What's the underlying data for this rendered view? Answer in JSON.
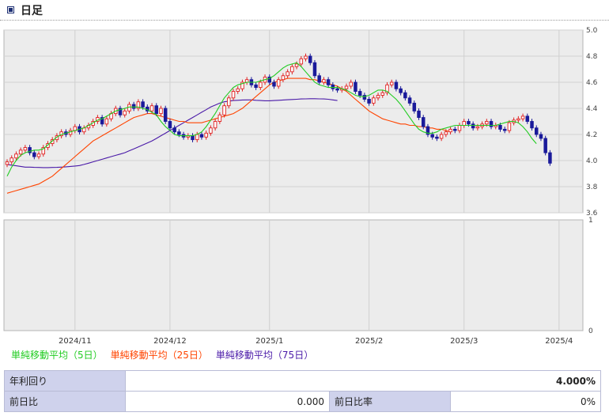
{
  "header": {
    "title": "日足"
  },
  "chart_data": {
    "type": "candlestick",
    "ylim": [
      3.6,
      5.0
    ],
    "yticks": [
      "5.0",
      "4.8",
      "4.6",
      "4.4",
      "4.2",
      "4.0",
      "3.8",
      "3.6"
    ],
    "ylim2": [
      0,
      1
    ],
    "yticks2": [
      "1",
      "0"
    ],
    "xticks": [
      {
        "label": "2024/11",
        "index": 15
      },
      {
        "label": "2024/12",
        "index": 36
      },
      {
        "label": "2025/1",
        "index": 58
      },
      {
        "label": "2025/2",
        "index": 80
      },
      {
        "label": "2025/3",
        "index": 101
      },
      {
        "label": "2025/4",
        "index": 122
      }
    ],
    "close": [
      3.99,
      4.02,
      4.05,
      4.08,
      4.1,
      4.06,
      4.03,
      4.05,
      4.1,
      4.13,
      4.16,
      4.19,
      4.22,
      4.2,
      4.23,
      4.26,
      4.22,
      4.25,
      4.27,
      4.3,
      4.33,
      4.28,
      4.32,
      4.36,
      4.4,
      4.35,
      4.38,
      4.43,
      4.4,
      4.45,
      4.41,
      4.38,
      4.42,
      4.36,
      4.4,
      4.3,
      4.25,
      4.22,
      4.2,
      4.18,
      4.19,
      4.16,
      4.2,
      4.18,
      4.21,
      4.25,
      4.3,
      4.35,
      4.42,
      4.48,
      4.53,
      4.55,
      4.6,
      4.62,
      4.58,
      4.56,
      4.6,
      4.64,
      4.6,
      4.57,
      4.62,
      4.65,
      4.68,
      4.72,
      4.74,
      4.78,
      4.8,
      4.75,
      4.65,
      4.6,
      4.62,
      4.58,
      4.55,
      4.54,
      4.55,
      4.57,
      4.6,
      4.53,
      4.5,
      4.47,
      4.44,
      4.48,
      4.5,
      4.52,
      4.58,
      4.6,
      4.55,
      4.52,
      4.48,
      4.44,
      4.38,
      4.33,
      4.26,
      4.2,
      4.18,
      4.17,
      4.2,
      4.22,
      4.24,
      4.23,
      4.27,
      4.3,
      4.28,
      4.25,
      4.26,
      4.28,
      4.3,
      4.26,
      4.27,
      4.24,
      4.23,
      4.29,
      4.31,
      4.32,
      4.34,
      4.3,
      4.25,
      4.2,
      4.17,
      4.06,
      3.98
    ],
    "open": [
      3.97,
      3.99,
      4.02,
      4.05,
      4.08,
      4.1,
      4.06,
      4.03,
      4.05,
      4.1,
      4.13,
      4.16,
      4.19,
      4.22,
      4.2,
      4.23,
      4.26,
      4.22,
      4.25,
      4.27,
      4.3,
      4.33,
      4.28,
      4.32,
      4.36,
      4.4,
      4.35,
      4.38,
      4.43,
      4.4,
      4.45,
      4.41,
      4.38,
      4.42,
      4.36,
      4.4,
      4.3,
      4.25,
      4.22,
      4.2,
      4.18,
      4.19,
      4.16,
      4.2,
      4.18,
      4.21,
      4.25,
      4.3,
      4.35,
      4.42,
      4.48,
      4.53,
      4.55,
      4.6,
      4.62,
      4.58,
      4.56,
      4.6,
      4.64,
      4.6,
      4.57,
      4.62,
      4.65,
      4.68,
      4.72,
      4.74,
      4.78,
      4.8,
      4.75,
      4.65,
      4.6,
      4.62,
      4.58,
      4.55,
      4.54,
      4.55,
      4.57,
      4.6,
      4.53,
      4.5,
      4.47,
      4.44,
      4.48,
      4.5,
      4.52,
      4.58,
      4.6,
      4.55,
      4.52,
      4.48,
      4.44,
      4.38,
      4.33,
      4.26,
      4.2,
      4.18,
      4.17,
      4.2,
      4.22,
      4.24,
      4.23,
      4.27,
      4.3,
      4.28,
      4.25,
      4.26,
      4.28,
      4.3,
      4.26,
      4.27,
      4.24,
      4.23,
      4.29,
      4.31,
      4.32,
      4.34,
      4.3,
      4.25,
      4.2,
      4.17,
      4.06
    ],
    "ma5": [
      3.88,
      3.95,
      4.0,
      4.04,
      4.06,
      4.07,
      4.08,
      4.08,
      4.09,
      4.12,
      4.15,
      4.18,
      4.2,
      4.21,
      4.22,
      4.23,
      4.24,
      4.25,
      4.27,
      4.29,
      4.31,
      4.32,
      4.34,
      4.36,
      4.38,
      4.39,
      4.4,
      4.41,
      4.41,
      4.41,
      4.4,
      4.39,
      4.37,
      4.35,
      4.3,
      4.26,
      4.23,
      4.2,
      4.19,
      4.19,
      4.19,
      4.19,
      4.2,
      4.22,
      4.26,
      4.31,
      4.36,
      4.42,
      4.48,
      4.52,
      4.56,
      4.58,
      4.59,
      4.6,
      4.6,
      4.6,
      4.61,
      4.62,
      4.63,
      4.65,
      4.68,
      4.71,
      4.73,
      4.74,
      4.75,
      4.72,
      4.68,
      4.64,
      4.6,
      4.58,
      4.57,
      4.56,
      4.56,
      4.56,
      4.55,
      4.54,
      4.52,
      4.5,
      4.49,
      4.49,
      4.5,
      4.52,
      4.54,
      4.54,
      4.53,
      4.5,
      4.47,
      4.43,
      4.38,
      4.33,
      4.28,
      4.24,
      4.22,
      4.21,
      4.21,
      4.22,
      4.24,
      4.25,
      4.26,
      4.27,
      4.27,
      4.27,
      4.27,
      4.27,
      4.27,
      4.27,
      4.27,
      4.27,
      4.27,
      4.28,
      4.29,
      4.3,
      4.3,
      4.29,
      4.26,
      4.22,
      4.17,
      4.13
    ],
    "ma25": [
      3.75,
      3.76,
      3.77,
      3.78,
      3.79,
      3.8,
      3.81,
      3.82,
      3.84,
      3.86,
      3.88,
      3.91,
      3.94,
      3.97,
      4.0,
      4.03,
      4.06,
      4.09,
      4.12,
      4.15,
      4.17,
      4.19,
      4.21,
      4.23,
      4.25,
      4.27,
      4.29,
      4.31,
      4.33,
      4.34,
      4.35,
      4.36,
      4.36,
      4.35,
      4.34,
      4.33,
      4.32,
      4.31,
      4.3,
      4.3,
      4.29,
      4.29,
      4.29,
      4.29,
      4.3,
      4.31,
      4.32,
      4.33,
      4.34,
      4.35,
      4.36,
      4.38,
      4.4,
      4.43,
      4.46,
      4.49,
      4.52,
      4.55,
      4.58,
      4.6,
      4.61,
      4.62,
      4.63,
      4.63,
      4.63,
      4.63,
      4.63,
      4.62,
      4.62,
      4.61,
      4.6,
      4.59,
      4.58,
      4.57,
      4.55,
      4.53,
      4.5,
      4.47,
      4.44,
      4.41,
      4.38,
      4.36,
      4.34,
      4.32,
      4.31,
      4.3,
      4.29,
      4.28,
      4.28,
      4.27,
      4.27,
      4.26,
      4.26,
      4.25,
      4.25,
      4.24,
      4.24,
      4.23,
      4.22
    ],
    "ma75": [
      3.97,
      3.965,
      3.96,
      3.955,
      3.95,
      3.95,
      3.948,
      3.947,
      3.946,
      3.946,
      3.947,
      3.948,
      3.95,
      3.952,
      3.955,
      3.958,
      3.962,
      3.97,
      3.98,
      3.99,
      4.0,
      4.01,
      4.02,
      4.03,
      4.04,
      4.05,
      4.06,
      4.075,
      4.09,
      4.105,
      4.12,
      4.135,
      4.15,
      4.17,
      4.19,
      4.21,
      4.23,
      4.25,
      4.27,
      4.29,
      4.31,
      4.33,
      4.35,
      4.37,
      4.39,
      4.41,
      4.425,
      4.44,
      4.45,
      4.455,
      4.46,
      4.462,
      4.464,
      4.465,
      4.465,
      4.462,
      4.46,
      4.458,
      4.458,
      4.46,
      4.462,
      4.464,
      4.466,
      4.468,
      4.47,
      4.472,
      4.473,
      4.474,
      4.474,
      4.473,
      4.472,
      4.47,
      4.465,
      4.46
    ]
  },
  "legend": [
    {
      "label": "単純移動平均（5日）",
      "color": "#22cc22"
    },
    {
      "label": "単純移動平均（25日）",
      "color": "#ff4400"
    },
    {
      "label": "単純移動平均（75日）",
      "color": "#4a1aa8"
    }
  ],
  "info": {
    "yield_label": "年利回り",
    "yield_value": "4.000%",
    "change_label": "前日比",
    "change_value": "0.000",
    "change_rate_label": "前日比率",
    "change_rate_value": "0%"
  }
}
